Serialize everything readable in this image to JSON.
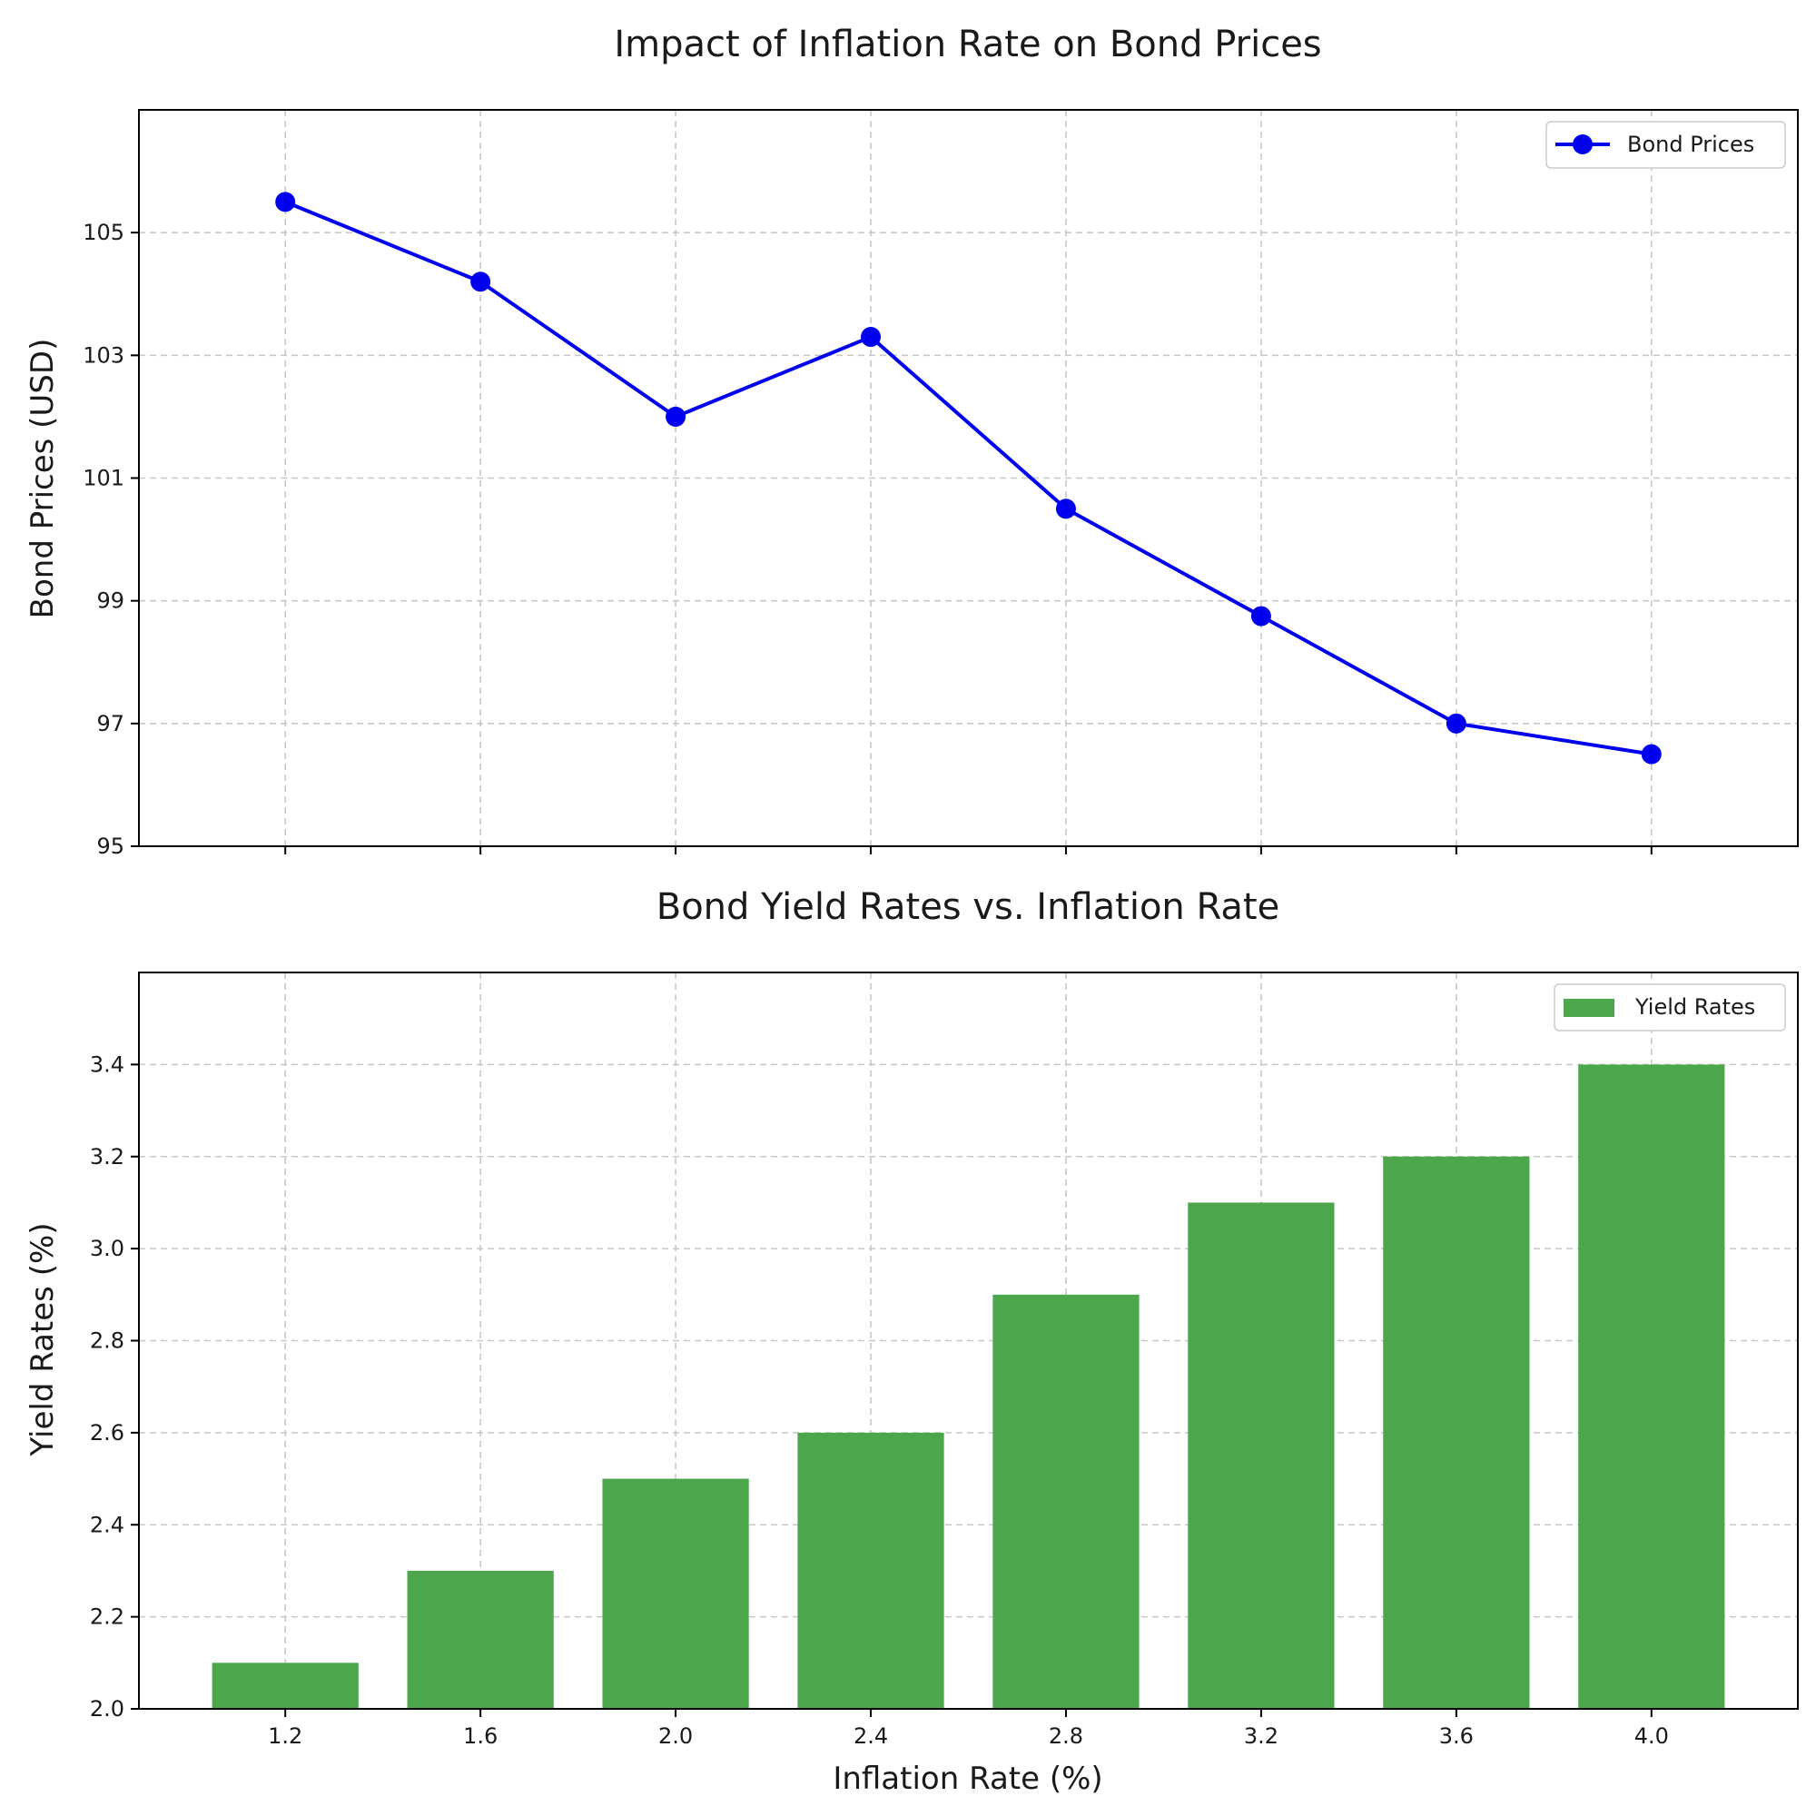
{
  "chart_data": [
    {
      "type": "line",
      "title": "Impact of Inflation Rate on Bond Prices",
      "xlabel": "",
      "ylabel": "Bond Prices (USD)",
      "x": [
        1.2,
        1.6,
        2.0,
        2.4,
        2.8,
        3.2,
        3.6,
        4.0
      ],
      "xlim": [
        0.9,
        4.3
      ],
      "ylim": [
        95,
        107
      ],
      "yticks": [
        95,
        97,
        99,
        101,
        103,
        105
      ],
      "grid": true,
      "legend_position": "top-right",
      "series": [
        {
          "name": "Bond Prices",
          "values": [
            105.5,
            104.2,
            102.0,
            103.3,
            100.5,
            98.75,
            97.0,
            96.5
          ],
          "color": "#0000ee",
          "marker": "circle"
        }
      ]
    },
    {
      "type": "bar",
      "title": "Bond Yield Rates vs. Inflation Rate",
      "xlabel": "Inflation Rate (%)",
      "ylabel": "Yield Rates (%)",
      "categories": [
        "1.2",
        "1.6",
        "2.0",
        "2.4",
        "2.8",
        "3.2",
        "3.6",
        "4.0"
      ],
      "x": [
        1.2,
        1.6,
        2.0,
        2.4,
        2.8,
        3.2,
        3.6,
        4.0
      ],
      "xlim": [
        0.9,
        4.3
      ],
      "ylim": [
        2.0,
        3.6
      ],
      "yticks": [
        "2.0",
        "2.2",
        "2.4",
        "2.6",
        "2.8",
        "3.0",
        "3.2",
        "3.4"
      ],
      "bar_width_units": 0.3,
      "grid": true,
      "legend_position": "top-right",
      "series": [
        {
          "name": "Yield Rates",
          "values": [
            2.1,
            2.3,
            2.5,
            2.6,
            2.9,
            3.1,
            3.2,
            3.4
          ],
          "color": "#4ca64c"
        }
      ]
    }
  ]
}
